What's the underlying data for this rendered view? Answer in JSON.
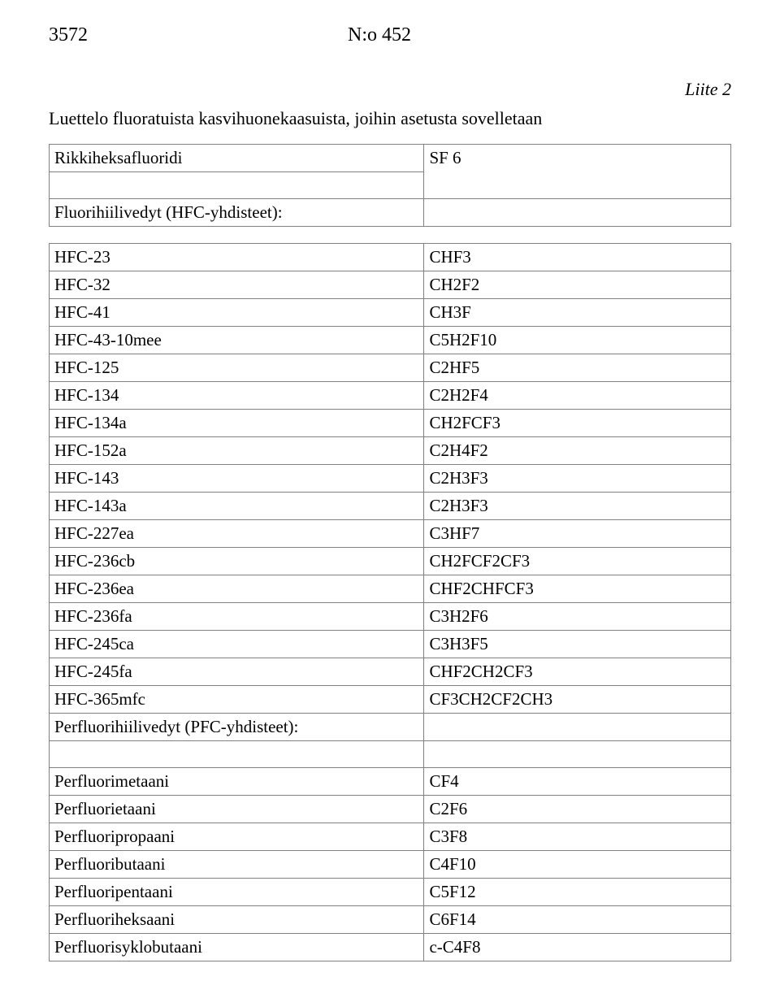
{
  "header": {
    "page_number": "3572",
    "doc_number": "N:o 452"
  },
  "appendix_label": "Liite 2",
  "title": "Luettelo fluoratuista kasvihuonekaasuista, joihin asetusta sovelletaan",
  "first_table": {
    "row1": {
      "left": "Rikkiheksafluoridi",
      "right": "SF 6"
    },
    "row2": {
      "left": "Fluorihiilivedyt (HFC-yhdisteet):",
      "right": ""
    }
  },
  "hfc_rows": [
    {
      "left": "HFC-23",
      "right": "CHF3"
    },
    {
      "left": "HFC-32",
      "right": "CH2F2"
    },
    {
      "left": "HFC-41",
      "right": "CH3F"
    },
    {
      "left": "HFC-43-10mee",
      "right": "C5H2F10"
    },
    {
      "left": "HFC-125",
      "right": "C2HF5"
    },
    {
      "left": "HFC-134",
      "right": "C2H2F4"
    },
    {
      "left": "HFC-134a",
      "right": "CH2FCF3"
    },
    {
      "left": "HFC-152a",
      "right": "C2H4F2"
    },
    {
      "left": "HFC-143",
      "right": "C2H3F3"
    },
    {
      "left": "HFC-143a",
      "right": "C2H3F3"
    },
    {
      "left": "HFC-227ea",
      "right": "C3HF7"
    },
    {
      "left": "HFC-236cb",
      "right": "CH2FCF2CF3"
    },
    {
      "left": "HFC-236ea",
      "right": "CHF2CHFCF3"
    },
    {
      "left": "HFC-236fa",
      "right": "C3H2F6"
    },
    {
      "left": "HFC-245ca",
      "right": "C3H3F5"
    },
    {
      "left": "HFC-245fa",
      "right": "CHF2CH2CF3"
    },
    {
      "left": "HFC-365mfc",
      "right": "CF3CH2CF2CH3"
    }
  ],
  "pfc_label": {
    "left": "Perfluorihiilivedyt (PFC-yhdisteet):",
    "right": ""
  },
  "pfc_rows": [
    {
      "left": "Perfluorimetaani",
      "right": "CF4"
    },
    {
      "left": "Perfluorietaani",
      "right": "C2F6"
    },
    {
      "left": "Perfluoripropaani",
      "right": "C3F8"
    },
    {
      "left": "Perfluoributaani",
      "right": "C4F10"
    },
    {
      "left": "Perfluoripentaani",
      "right": "C5F12"
    },
    {
      "left": "Perfluoriheksaani",
      "right": "C6F14"
    },
    {
      "left": "Perfluorisyklobutaani",
      "right": "c-C4F8"
    }
  ]
}
